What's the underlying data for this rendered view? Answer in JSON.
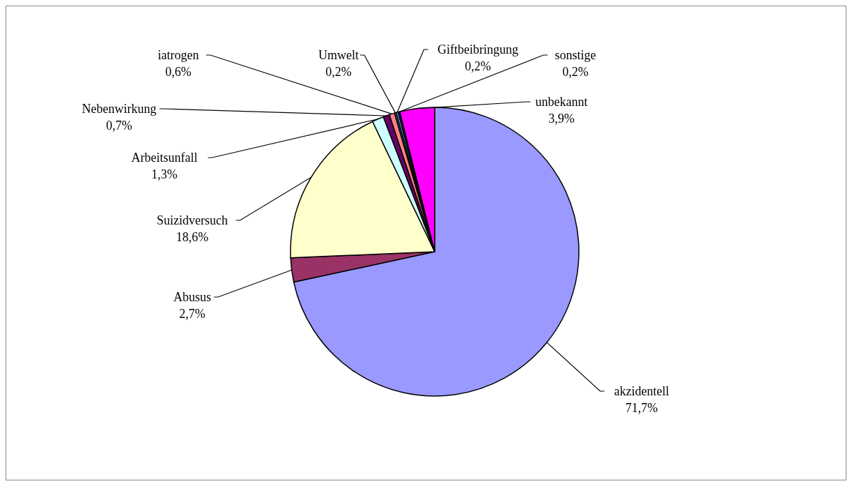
{
  "chart_data": {
    "type": "pie",
    "categories": [
      "akzidentell",
      "Abusus",
      "Suizidversuch",
      "Arbeitsunfall",
      "Nebenwirkung",
      "iatrogen",
      "Umwelt",
      "Giftbeibringung",
      "sonstige",
      "unbekannt"
    ],
    "values": [
      71.7,
      2.7,
      18.6,
      1.3,
      0.7,
      0.6,
      0.2,
      0.2,
      0.2,
      3.9
    ],
    "colors": [
      "#9999ff",
      "#993366",
      "#ffffcc",
      "#ccffff",
      "#660066",
      "#ff8080",
      "#0066cc",
      "#ccccff",
      "#000080",
      "#ff00ff"
    ],
    "value_labels": [
      "71,7%",
      "2,7%",
      "18,6%",
      "1,3%",
      "0,7%",
      "0,6%",
      "0,2%",
      "0,2%",
      "0,2%",
      "3,9%"
    ],
    "legend": false
  }
}
